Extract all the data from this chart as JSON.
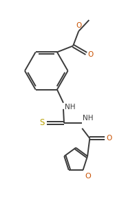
{
  "background_color": "#ffffff",
  "line_color": "#3a3a3a",
  "line_width": 1.4,
  "figsize": [
    1.83,
    3.14
  ],
  "dpi": 100,
  "o_color": "#c85000",
  "s_color": "#b8a000",
  "text_color": "#3a3a3a",
  "font_size_label": 7.5,
  "xlim": [
    0,
    9
  ],
  "ylim": [
    0,
    15
  ]
}
